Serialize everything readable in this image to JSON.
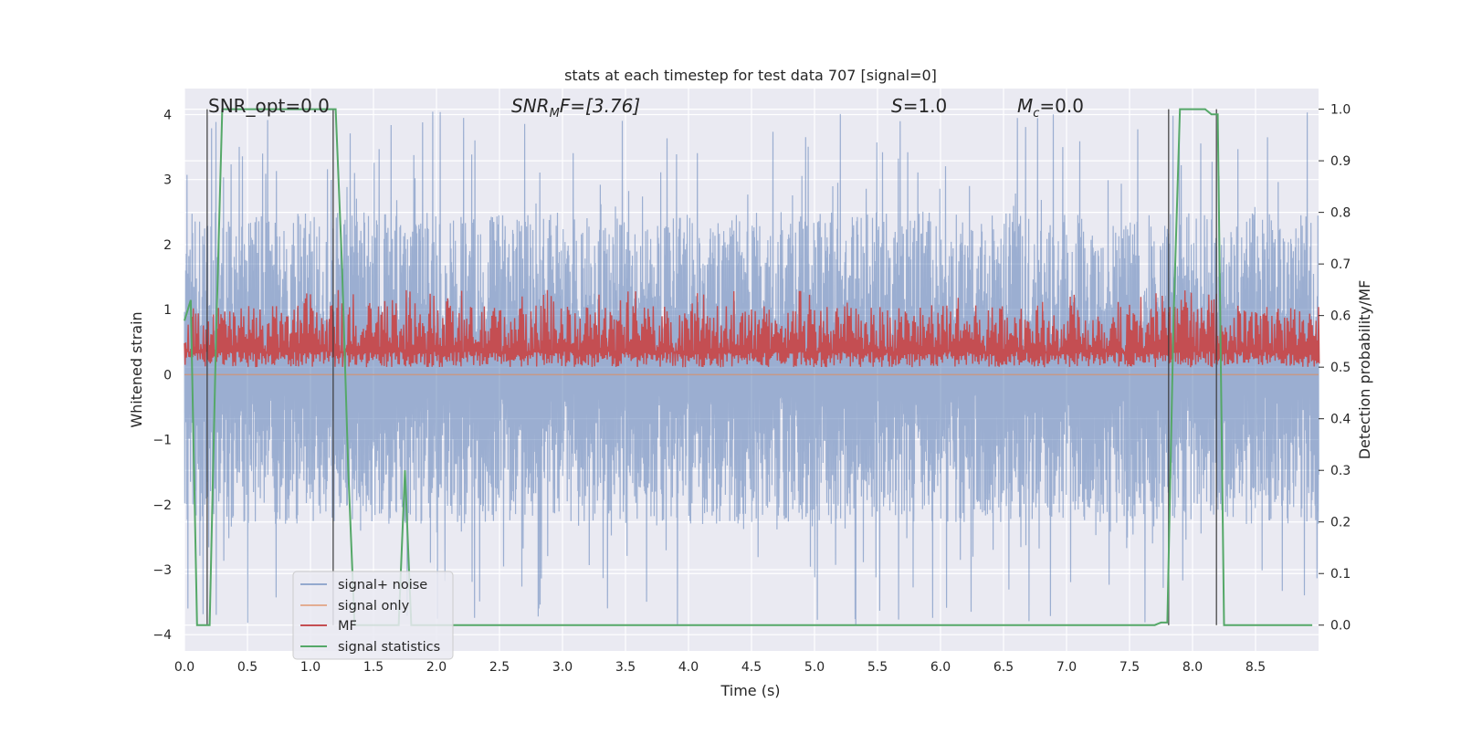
{
  "chart_data": {
    "type": "line",
    "title": "stats at each timestep for test data 707 [signal=0]",
    "xlabel": "Time (s)",
    "ylabel_left": "Whitened strain",
    "ylabel_right": "Detection probability/MF",
    "xlim": [
      0.0,
      9.0
    ],
    "ylim_left": [
      -4.25,
      4.4
    ],
    "ylim_right": [
      -0.05,
      1.04
    ],
    "x_ticks": [
      "0.0",
      "0.5",
      "1.0",
      "1.5",
      "2.0",
      "2.5",
      "3.0",
      "3.5",
      "4.0",
      "4.5",
      "5.0",
      "5.5",
      "6.0",
      "6.5",
      "7.0",
      "7.5",
      "8.0",
      "8.5"
    ],
    "y_left_ticks": [
      "4",
      "3",
      "2",
      "1",
      "0",
      "−1",
      "−2",
      "−3",
      "−4"
    ],
    "y_right_ticks": [
      "1.0",
      "0.9",
      "0.8",
      "0.7",
      "0.6",
      "0.5",
      "0.4",
      "0.3",
      "0.2",
      "0.1",
      "0.0"
    ],
    "grid": true,
    "annotations": {
      "snr_opt": "SNR_opt=0.0",
      "snr_mf_main": "SNR",
      "snr_mf_sub": "M",
      "snr_mf_rest": "F=[3.76]",
      "s_main": "S",
      "s_rest": "=1.0",
      "mc_main": "M",
      "mc_sub": "c",
      "mc_rest": "=0.0"
    },
    "legend": {
      "placement": "lower-left",
      "entries": [
        "signal+ noise",
        "signal only",
        "MF",
        "signal statistics"
      ]
    },
    "series": [
      {
        "name": "signal+ noise",
        "axis": "left",
        "color": "#4c72b0",
        "description_values": {
          "typical_max": 2.5,
          "peak_max": 4.05,
          "typical_min": -2.3,
          "peak_min": -3.85
        }
      },
      {
        "name": "signal only",
        "axis": "left",
        "color": "#dd8452",
        "values_x": [
          0.0,
          9.0
        ],
        "values_y": [
          0.0,
          0.0
        ]
      },
      {
        "name": "MF",
        "axis": "right",
        "color": "#c44e52",
        "description_values": {
          "baseline": 0.5,
          "typical_max": 0.62,
          "peak_max": 0.65
        }
      },
      {
        "name": "signal statistics",
        "axis": "right",
        "color": "#55a868",
        "x": [
          0.0,
          0.05,
          0.1,
          0.15,
          0.2,
          0.25,
          0.3,
          0.4,
          0.6,
          0.8,
          1.0,
          1.1,
          1.15,
          1.2,
          1.25,
          1.3,
          1.35,
          1.4,
          1.5,
          1.6,
          1.7,
          1.75,
          1.8,
          1.85,
          1.9,
          2.0,
          3.0,
          4.0,
          5.0,
          6.0,
          7.0,
          7.5,
          7.7,
          7.75,
          7.8,
          7.85,
          7.9,
          7.95,
          8.0,
          8.05,
          8.1,
          8.15,
          8.2,
          8.25,
          8.3,
          8.4,
          8.6,
          8.95
        ],
        "y": [
          0.59,
          0.63,
          0.0,
          0.0,
          0.0,
          0.55,
          1.0,
          1.0,
          1.0,
          1.0,
          1.0,
          1.0,
          1.0,
          1.0,
          0.7,
          0.3,
          0.0,
          0.0,
          0.0,
          0.0,
          0.0,
          0.3,
          0.0,
          0.0,
          0.0,
          0.0,
          0.0,
          0.0,
          0.0,
          0.0,
          0.0,
          0.0,
          0.0,
          0.005,
          0.005,
          0.6,
          1.0,
          1.0,
          1.0,
          1.0,
          1.0,
          0.99,
          0.99,
          0.0,
          0.0,
          0.0,
          0.0,
          0.0
        ]
      }
    ],
    "vertical_markers_x": [
      0.18,
      1.18,
      7.81,
      8.19
    ]
  }
}
